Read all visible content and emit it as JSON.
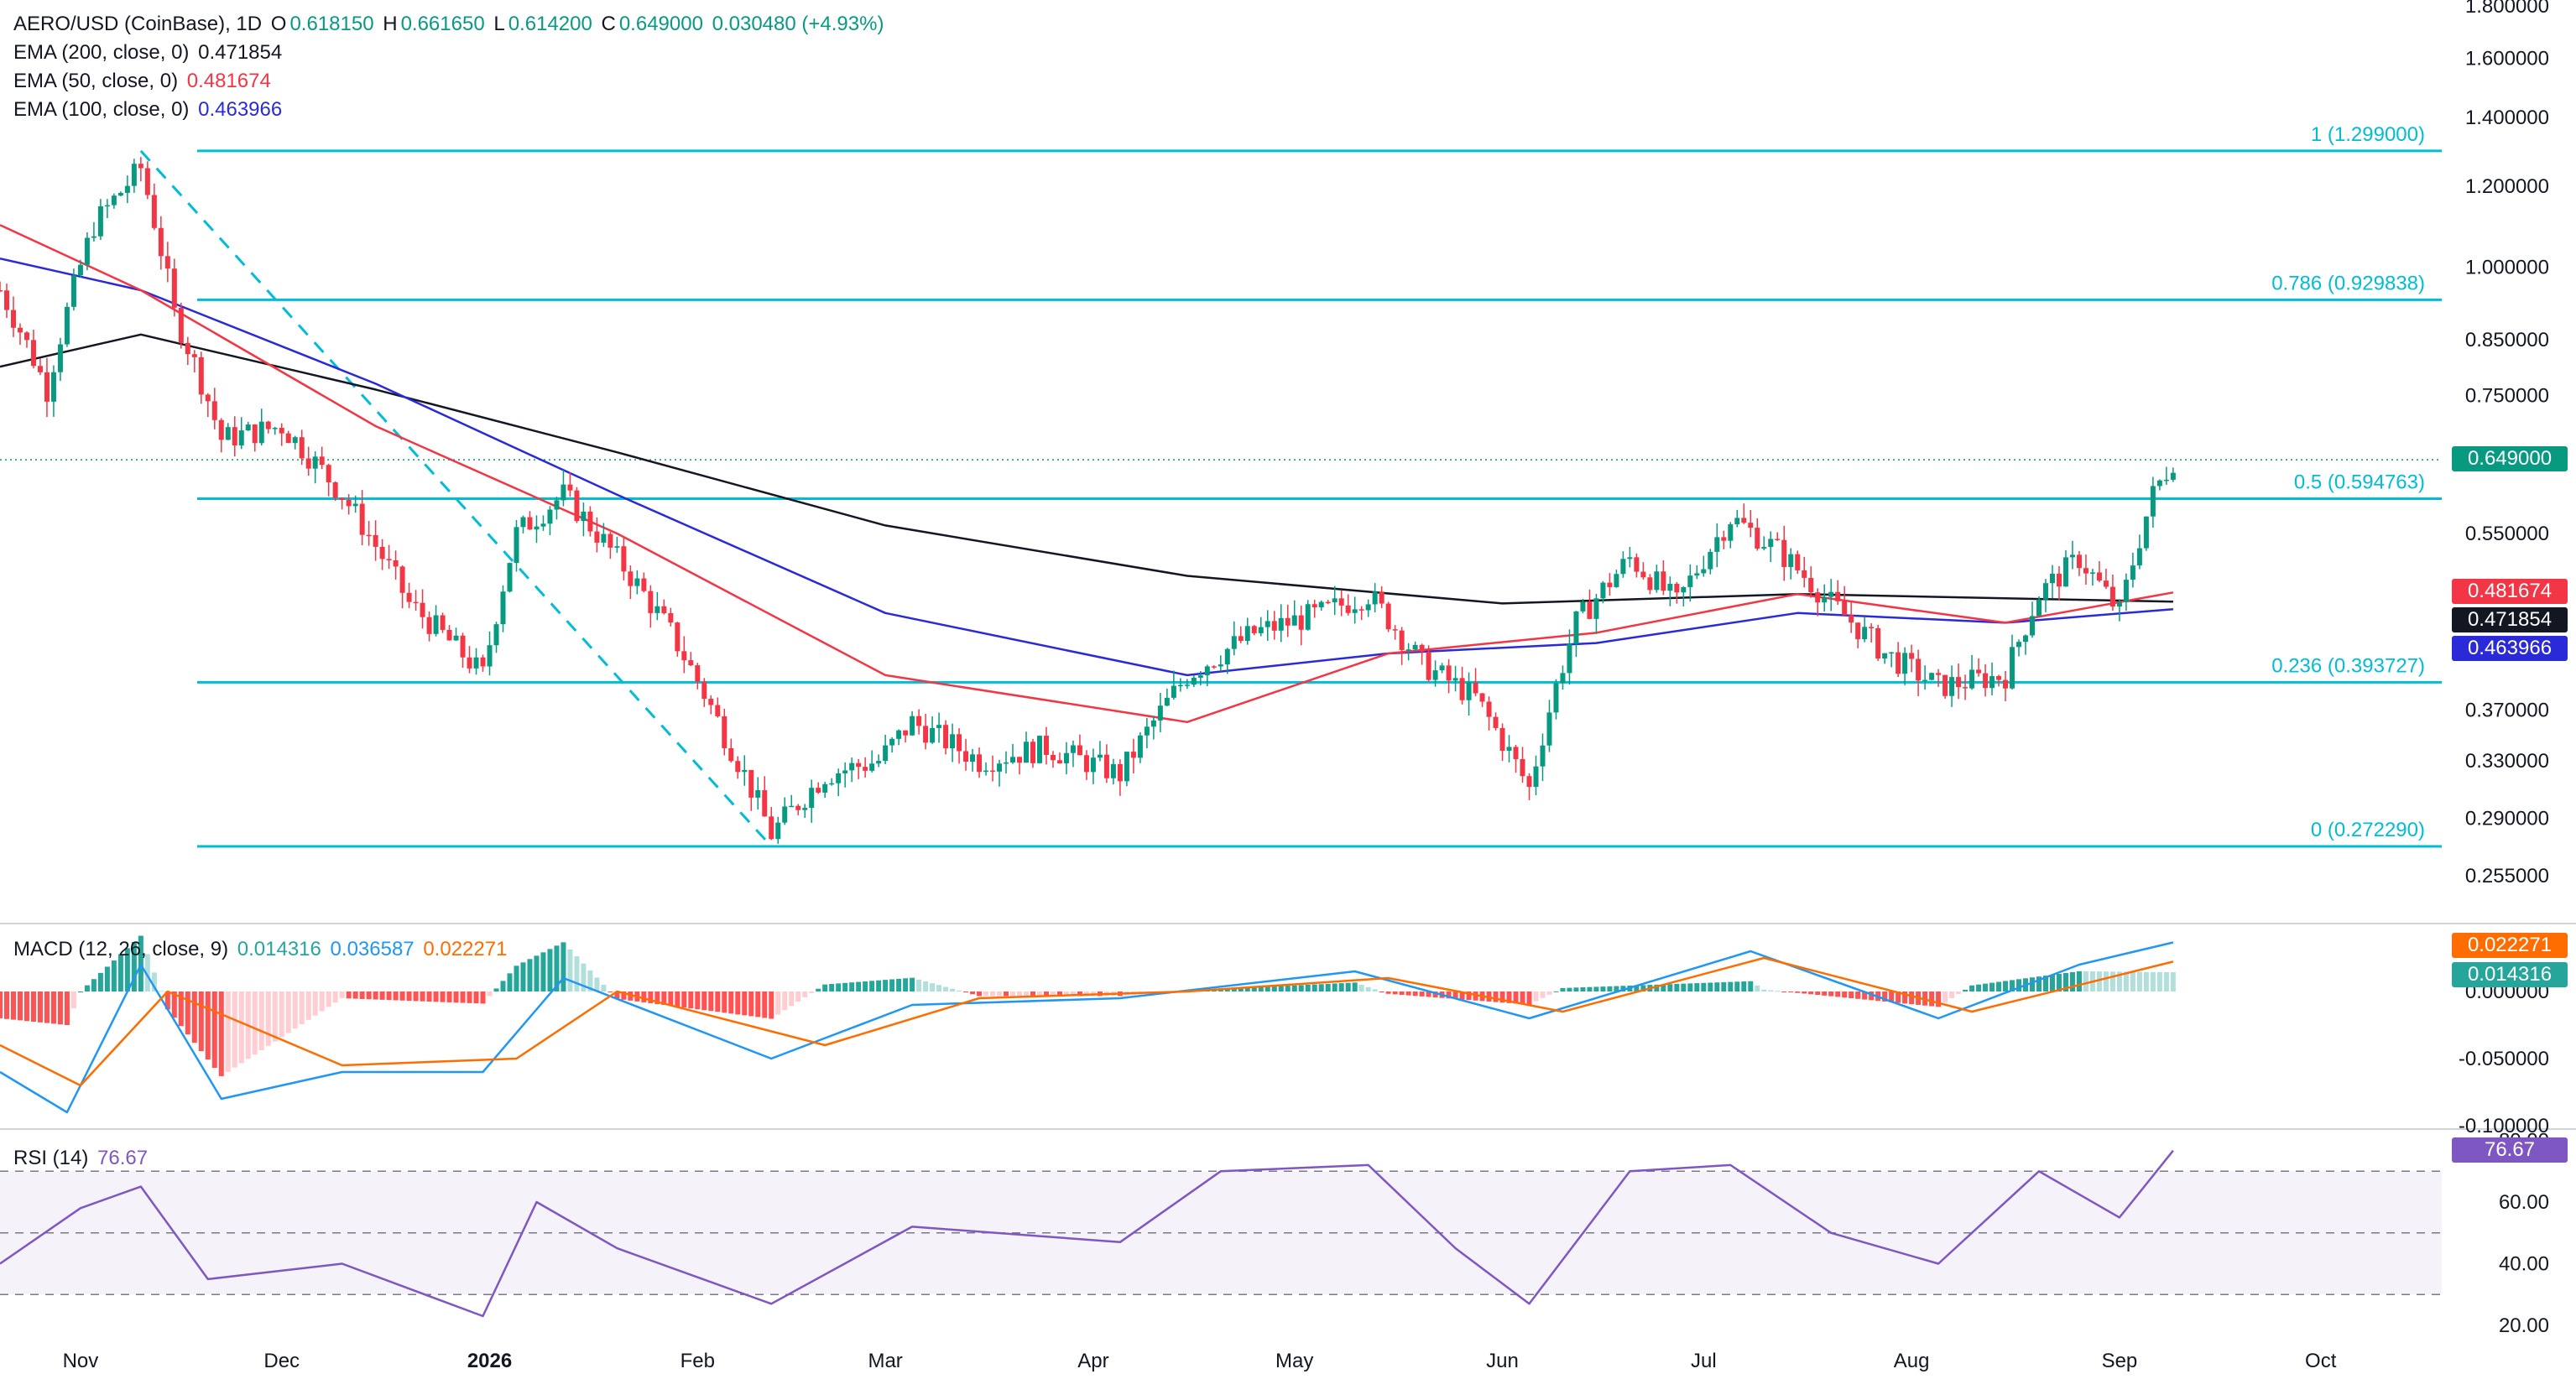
{
  "header": {
    "symbol": "AERO/USD (CoinBase), 1D",
    "open_label": "O",
    "open": "0.618150",
    "high_label": "H",
    "high": "0.661650",
    "low_label": "L",
    "low": "0.614200",
    "close_label": "C",
    "close": "0.649000",
    "change": "0.030480 (+4.93%)"
  },
  "indicators": [
    {
      "label": "EMA (200, close, 0)",
      "value": "0.471854",
      "color": "#131722"
    },
    {
      "label": "EMA (50, close, 0)",
      "value": "0.481674",
      "color": "#f23645"
    },
    {
      "label": "EMA (100, close, 0)",
      "value": "0.463966",
      "color": "#2a2ad8"
    }
  ],
  "macd": {
    "label": "MACD (12, 26, close, 9)",
    "hist": "0.014316",
    "macd": "0.036587",
    "signal": "0.022271"
  },
  "rsi": {
    "label": "RSI (14)",
    "value": "76.67"
  },
  "price_labels": {
    "last": "0.649000",
    "ema50": "0.481674",
    "ema200": "0.471854",
    "ema100": "0.463966",
    "macd_signal": "0.022271",
    "macd_hist": "0.014316",
    "rsi": "76.67"
  },
  "colors": {
    "up": "#089981",
    "down": "#f23645",
    "fib": "#00bcd4",
    "ema200": "#131722",
    "ema50": "#f23645",
    "ema100": "#2a2ad8",
    "macd": "#2196f3",
    "signal": "#ff6d00",
    "rsi": "#7e57c2"
  },
  "chart_data": {
    "type": "candlestick",
    "price_axis": {
      "scale": "log",
      "ticks": [
        "1.800000",
        "1.600000",
        "1.400000",
        "1.200000",
        "1.000000",
        "0.850000",
        "0.750000",
        "0.550000",
        "0.370000",
        "0.330000",
        "0.290000",
        "0.255000"
      ]
    },
    "time_axis": {
      "ticks": [
        "Nov",
        "Dec",
        "2026",
        "Feb",
        "Mar",
        "Apr",
        "May",
        "Jun",
        "Jul",
        "Aug",
        "Sep",
        "Oct"
      ]
    },
    "fib_levels": [
      {
        "ratio": "1",
        "label": "1 (1.299000)",
        "price": 1.299
      },
      {
        "ratio": "0.786",
        "label": "0.786 (0.929838)",
        "price": 0.929838
      },
      {
        "ratio": "0.5",
        "label": "0.5 (0.594763)",
        "price": 0.594763
      },
      {
        "ratio": "0.236",
        "label": "0.236 (0.393727)",
        "price": 0.393727
      },
      {
        "ratio": "0",
        "label": "0 (0.272290)",
        "price": 0.27229
      }
    ],
    "trendline": {
      "from": {
        "date": "2025-11-10",
        "price": 1.299
      },
      "to": {
        "date": "2026-02-12",
        "price": 0.27229
      }
    },
    "price_path": [
      {
        "date": "2025-10-20",
        "price": 0.95
      },
      {
        "date": "2025-10-27",
        "price": 0.76
      },
      {
        "date": "2025-11-03",
        "price": 1.1
      },
      {
        "date": "2025-11-10",
        "price": 1.25
      },
      {
        "date": "2025-11-15",
        "price": 0.9
      },
      {
        "date": "2025-11-22",
        "price": 0.68
      },
      {
        "date": "2025-12-01",
        "price": 0.7
      },
      {
        "date": "2025-12-10",
        "price": 0.6
      },
      {
        "date": "2025-12-20",
        "price": 0.47
      },
      {
        "date": "2025-12-31",
        "price": 0.4
      },
      {
        "date": "2026-01-05",
        "price": 0.55
      },
      {
        "date": "2026-01-12",
        "price": 0.6
      },
      {
        "date": "2026-01-20",
        "price": 0.52
      },
      {
        "date": "2026-01-28",
        "price": 0.44
      },
      {
        "date": "2026-02-05",
        "price": 0.35
      },
      {
        "date": "2026-02-12",
        "price": 0.28
      },
      {
        "date": "2026-02-20",
        "price": 0.32
      },
      {
        "date": "2026-02-28",
        "price": 0.33
      },
      {
        "date": "2026-03-05",
        "price": 0.36
      },
      {
        "date": "2026-03-15",
        "price": 0.33
      },
      {
        "date": "2026-03-25",
        "price": 0.34
      },
      {
        "date": "2026-04-05",
        "price": 0.32
      },
      {
        "date": "2026-04-15",
        "price": 0.4
      },
      {
        "date": "2026-04-25",
        "price": 0.44
      },
      {
        "date": "2026-05-05",
        "price": 0.46
      },
      {
        "date": "2026-05-12",
        "price": 0.48
      },
      {
        "date": "2026-05-20",
        "price": 0.41
      },
      {
        "date": "2026-05-28",
        "price": 0.38
      },
      {
        "date": "2026-06-05",
        "price": 0.31
      },
      {
        "date": "2026-06-12",
        "price": 0.45
      },
      {
        "date": "2026-06-20",
        "price": 0.52
      },
      {
        "date": "2026-06-27",
        "price": 0.47
      },
      {
        "date": "2026-07-05",
        "price": 0.57
      },
      {
        "date": "2026-07-12",
        "price": 0.53
      },
      {
        "date": "2026-07-20",
        "price": 0.47
      },
      {
        "date": "2026-07-28",
        "price": 0.42
      },
      {
        "date": "2026-08-05",
        "price": 0.39
      },
      {
        "date": "2026-08-15",
        "price": 0.4
      },
      {
        "date": "2026-08-20",
        "price": 0.48
      },
      {
        "date": "2026-08-26",
        "price": 0.52
      },
      {
        "date": "2026-09-01",
        "price": 0.46
      },
      {
        "date": "2026-09-06",
        "price": 0.6
      },
      {
        "date": "2026-09-09",
        "price": 0.649
      }
    ],
    "ema200_path": [
      {
        "date": "2025-10-20",
        "price": 0.8
      },
      {
        "date": "2025-11-10",
        "price": 0.86
      },
      {
        "date": "2025-12-15",
        "price": 0.76
      },
      {
        "date": "2026-01-20",
        "price": 0.66
      },
      {
        "date": "2026-03-01",
        "price": 0.56
      },
      {
        "date": "2026-04-15",
        "price": 0.5
      },
      {
        "date": "2026-06-01",
        "price": 0.47
      },
      {
        "date": "2026-07-15",
        "price": 0.48
      },
      {
        "date": "2026-09-09",
        "price": 0.471854
      }
    ],
    "ema50_path": [
      {
        "date": "2025-10-20",
        "price": 1.1
      },
      {
        "date": "2025-11-10",
        "price": 0.95
      },
      {
        "date": "2025-12-15",
        "price": 0.7
      },
      {
        "date": "2026-01-20",
        "price": 0.55
      },
      {
        "date": "2026-03-01",
        "price": 0.4
      },
      {
        "date": "2026-04-15",
        "price": 0.36
      },
      {
        "date": "2026-05-15",
        "price": 0.42
      },
      {
        "date": "2026-06-15",
        "price": 0.44
      },
      {
        "date": "2026-07-15",
        "price": 0.48
      },
      {
        "date": "2026-08-15",
        "price": 0.45
      },
      {
        "date": "2026-09-09",
        "price": 0.481674
      }
    ],
    "ema100_path": [
      {
        "date": "2025-10-20",
        "price": 1.02
      },
      {
        "date": "2025-11-10",
        "price": 0.95
      },
      {
        "date": "2025-12-15",
        "price": 0.77
      },
      {
        "date": "2026-01-20",
        "price": 0.6
      },
      {
        "date": "2026-03-01",
        "price": 0.46
      },
      {
        "date": "2026-04-15",
        "price": 0.4
      },
      {
        "date": "2026-05-15",
        "price": 0.42
      },
      {
        "date": "2026-06-15",
        "price": 0.43
      },
      {
        "date": "2026-07-15",
        "price": 0.46
      },
      {
        "date": "2026-08-15",
        "price": 0.45
      },
      {
        "date": "2026-09-09",
        "price": 0.463966
      }
    ],
    "macd_axis": {
      "ticks": [
        "0.000000",
        "-0.050000",
        "-0.100000"
      ]
    },
    "macd_path": [
      {
        "date": "2025-10-20",
        "value": -0.06
      },
      {
        "date": "2025-10-30",
        "value": -0.09
      },
      {
        "date": "2025-11-10",
        "value": 0.02
      },
      {
        "date": "2025-11-22",
        "value": -0.08
      },
      {
        "date": "2025-12-10",
        "value": -0.06
      },
      {
        "date": "2025-12-31",
        "value": -0.06
      },
      {
        "date": "2026-01-12",
        "value": 0.01
      },
      {
        "date": "2026-02-12",
        "value": -0.05
      },
      {
        "date": "2026-03-05",
        "value": -0.01
      },
      {
        "date": "2026-04-05",
        "value": -0.005
      },
      {
        "date": "2026-05-10",
        "value": 0.015
      },
      {
        "date": "2026-06-05",
        "value": -0.02
      },
      {
        "date": "2026-07-08",
        "value": 0.03
      },
      {
        "date": "2026-08-05",
        "value": -0.02
      },
      {
        "date": "2026-08-26",
        "value": 0.02
      },
      {
        "date": "2026-09-09",
        "value": 0.036587
      }
    ],
    "signal_path": [
      {
        "date": "2025-10-20",
        "value": -0.04
      },
      {
        "date": "2025-11-01",
        "value": -0.07
      },
      {
        "date": "2025-11-14",
        "value": 0.0
      },
      {
        "date": "2025-12-10",
        "value": -0.055
      },
      {
        "date": "2026-01-05",
        "value": -0.05
      },
      {
        "date": "2026-01-20",
        "value": 0.0
      },
      {
        "date": "2026-02-20",
        "value": -0.04
      },
      {
        "date": "2026-03-15",
        "value": -0.005
      },
      {
        "date": "2026-04-15",
        "value": 0.0
      },
      {
        "date": "2026-05-15",
        "value": 0.01
      },
      {
        "date": "2026-06-10",
        "value": -0.015
      },
      {
        "date": "2026-07-10",
        "value": 0.025
      },
      {
        "date": "2026-08-10",
        "value": -0.015
      },
      {
        "date": "2026-09-09",
        "value": 0.022271
      }
    ],
    "rsi_axis": {
      "ticks": [
        "80.00",
        "60.00",
        "40.00",
        "20.00"
      ],
      "bands": [
        70,
        50,
        30
      ]
    },
    "rsi_path": [
      {
        "date": "2025-10-20",
        "value": 40
      },
      {
        "date": "2025-11-01",
        "value": 58
      },
      {
        "date": "2025-11-10",
        "value": 65
      },
      {
        "date": "2025-11-20",
        "value": 35
      },
      {
        "date": "2025-12-10",
        "value": 40
      },
      {
        "date": "2025-12-31",
        "value": 23
      },
      {
        "date": "2026-01-08",
        "value": 60
      },
      {
        "date": "2026-01-20",
        "value": 45
      },
      {
        "date": "2026-02-12",
        "value": 27
      },
      {
        "date": "2026-03-05",
        "value": 52
      },
      {
        "date": "2026-04-05",
        "value": 47
      },
      {
        "date": "2026-04-20",
        "value": 70
      },
      {
        "date": "2026-05-12",
        "value": 72
      },
      {
        "date": "2026-05-25",
        "value": 45
      },
      {
        "date": "2026-06-05",
        "value": 27
      },
      {
        "date": "2026-06-20",
        "value": 70
      },
      {
        "date": "2026-07-05",
        "value": 72
      },
      {
        "date": "2026-07-20",
        "value": 50
      },
      {
        "date": "2026-08-05",
        "value": 40
      },
      {
        "date": "2026-08-20",
        "value": 70
      },
      {
        "date": "2026-09-01",
        "value": 55
      },
      {
        "date": "2026-09-09",
        "value": 76.67
      }
    ]
  }
}
